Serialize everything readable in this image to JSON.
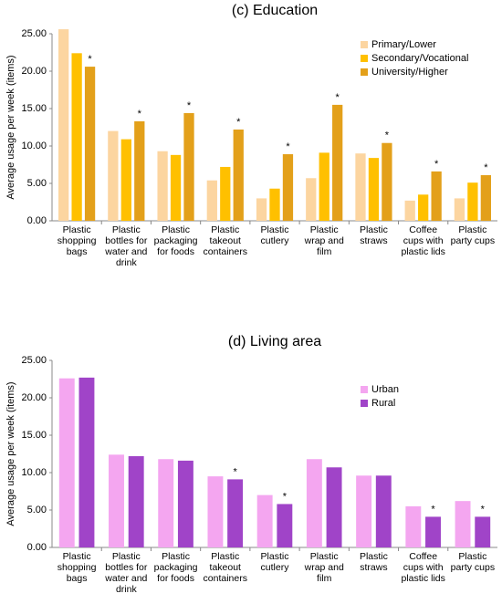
{
  "chart_data": [
    {
      "type": "bar",
      "title": "(c) Education",
      "y_label": "Average usage per week (items)",
      "categories": [
        "Plastic shopping bags",
        "Plastic bottles for water and drink",
        "Plastic packaging for foods",
        "Plastic takeout containers",
        "Plastic cutlery",
        "Plastic wrap and film",
        "Plastic straws",
        "Coffee cups with plastic lids",
        "Plastic party cups"
      ],
      "series": [
        {
          "name": "Primary/Lower",
          "color": "#fcd5a0",
          "values": [
            25.6,
            12.0,
            9.3,
            5.4,
            3.0,
            5.7,
            9.0,
            2.7,
            3.0
          ]
        },
        {
          "name": "Secondary/Vocational",
          "color": "#ffc000",
          "values": [
            22.4,
            10.9,
            8.8,
            7.2,
            4.3,
            9.1,
            8.4,
            3.5,
            5.1
          ]
        },
        {
          "name": "University/Higher",
          "color": "#e3a01a",
          "values": [
            20.6,
            13.3,
            14.4,
            12.2,
            8.9,
            15.5,
            10.4,
            6.6,
            6.1
          ]
        }
      ],
      "markers": [
        "*",
        "*",
        "*",
        "*",
        "*",
        "*",
        "*",
        "*",
        "*"
      ],
      "ylim": [
        0,
        25
      ],
      "yticks": [
        {
          "value": 0,
          "label": "0.00"
        },
        {
          "value": 5,
          "label": "5.00"
        },
        {
          "value": 10,
          "label": "10.00"
        },
        {
          "value": 15,
          "label": "15.00"
        },
        {
          "value": 20,
          "label": "20.00"
        },
        {
          "value": 25,
          "label": "25.00"
        }
      ],
      "grid": false,
      "legend": "top-right"
    },
    {
      "type": "bar",
      "title": "(d) Living area",
      "y_label": "Average usage per week (items)",
      "categories": [
        "Plastic shopping bags",
        "Plastic bottles for water and drink",
        "Plastic packaging for foods",
        "Plastic takeout containers",
        "Plastic cutlery",
        "Plastic wrap and film",
        "Plastic straws",
        "Coffee cups with plastic lids",
        "Plastic party cups"
      ],
      "series": [
        {
          "name": "Urban",
          "color": "#f4a6f0",
          "values": [
            22.6,
            12.4,
            11.8,
            9.5,
            7.0,
            11.8,
            9.6,
            5.5,
            6.2
          ]
        },
        {
          "name": "Rural",
          "color": "#a044c8",
          "values": [
            22.7,
            12.2,
            11.6,
            9.1,
            5.8,
            10.7,
            9.6,
            4.1,
            4.1
          ]
        }
      ],
      "markers": [
        null,
        null,
        null,
        "*",
        "*",
        null,
        null,
        "*",
        "*"
      ],
      "ylim": [
        0,
        25
      ],
      "yticks": [
        {
          "value": 0,
          "label": "0.00"
        },
        {
          "value": 5,
          "label": "5.00"
        },
        {
          "value": 10,
          "label": "10.00"
        },
        {
          "value": 15,
          "label": "15.00"
        },
        {
          "value": 20,
          "label": "20.00"
        },
        {
          "value": 25,
          "label": "25.00"
        }
      ],
      "grid": false,
      "legend": "top-right"
    }
  ]
}
